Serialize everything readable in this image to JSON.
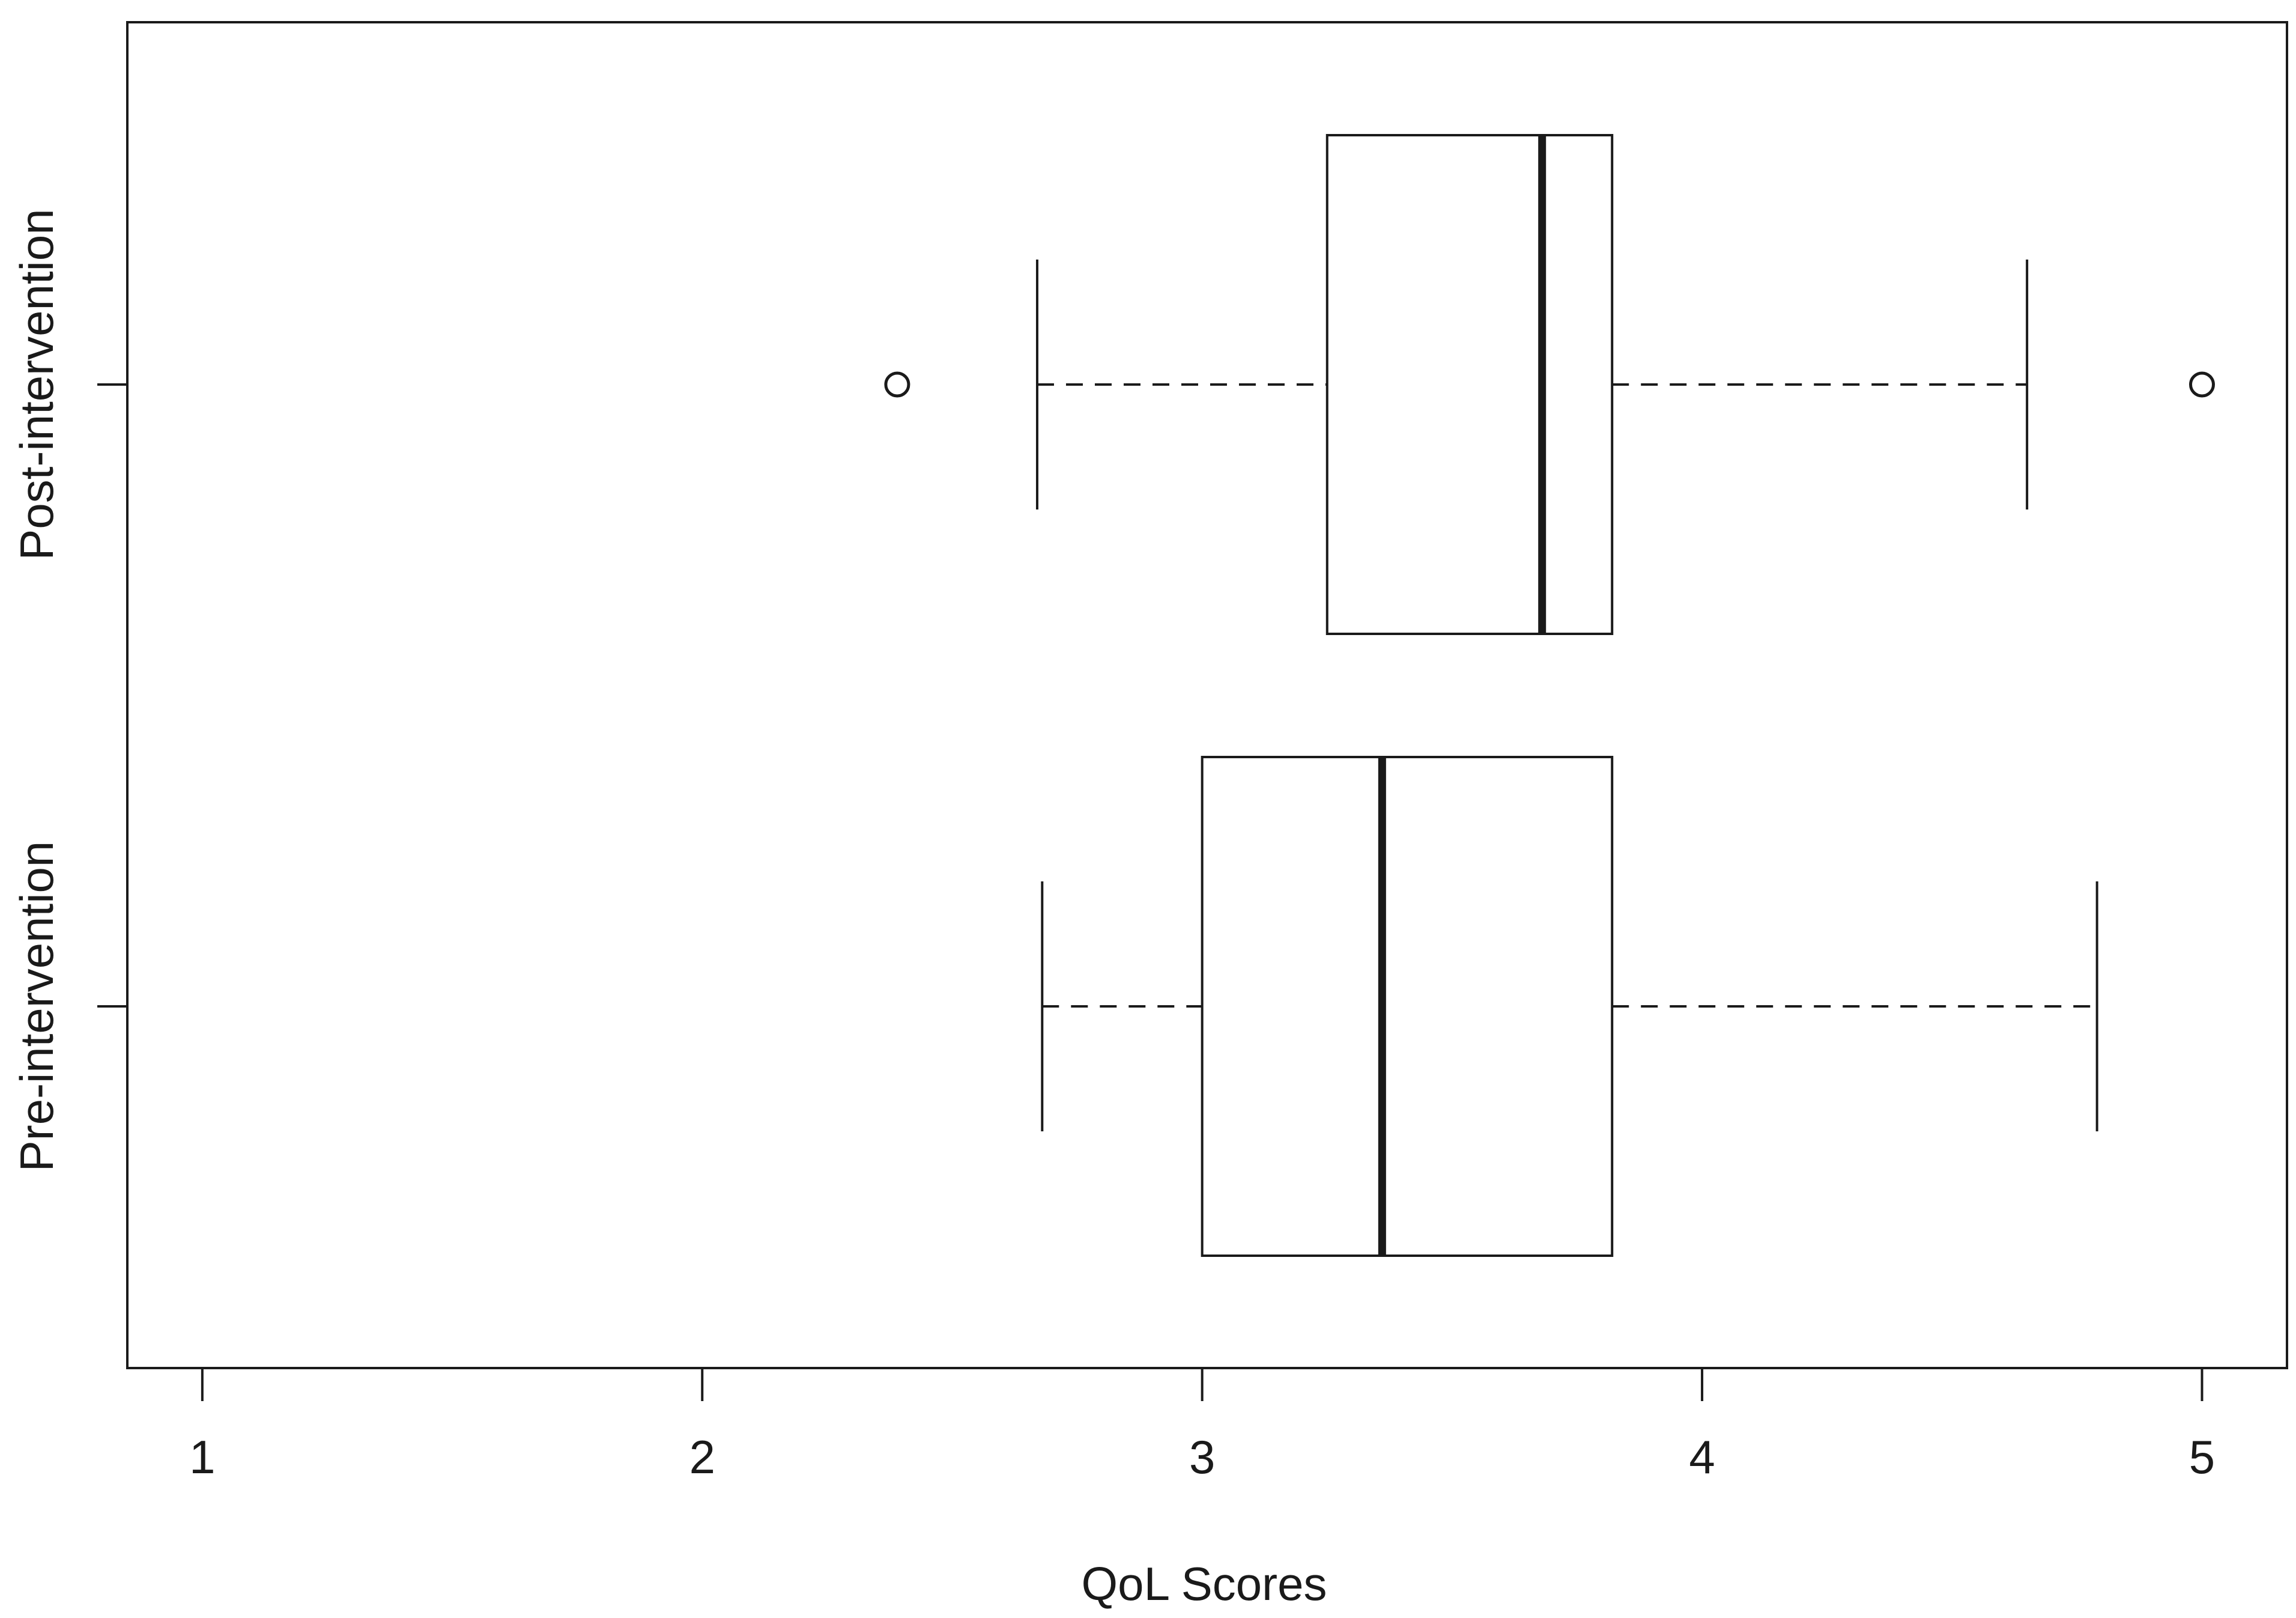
{
  "chart_data": {
    "type": "boxplot",
    "orientation": "horizontal",
    "xlabel": "QoL Scores",
    "ylabel": "",
    "xlim": [
      0.85,
      5.17
    ],
    "xticks": [
      1,
      2,
      3,
      4,
      5
    ],
    "xtick_labels": [
      "1",
      "2",
      "3",
      "4",
      "5"
    ],
    "grid": false,
    "series": [
      {
        "name": "Post-intervention",
        "whisker_low": 2.67,
        "q1": 3.25,
        "median": 3.68,
        "q3": 3.82,
        "whisker_high": 4.65,
        "outliers": [
          2.39,
          5.0
        ]
      },
      {
        "name": "Pre-intervention",
        "whisker_low": 2.68,
        "q1": 3.0,
        "median": 3.36,
        "q3": 3.82,
        "whisker_high": 4.79,
        "outliers": []
      }
    ]
  }
}
